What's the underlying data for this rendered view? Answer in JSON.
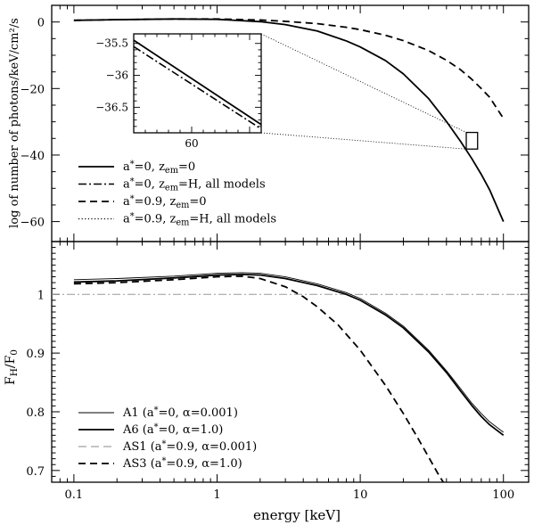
{
  "chart_data": [
    {
      "type": "line",
      "panel": "top",
      "ylabel": "log of number of photons/keV/cm²/s",
      "xlim": [
        0.07,
        150
      ],
      "ylim": [
        -66,
        5
      ],
      "x_scale": "log",
      "y_ticks": [
        {
          "v": 0,
          "label": "0"
        },
        {
          "v": -20,
          "label": "−20"
        },
        {
          "v": -40,
          "label": "−40"
        },
        {
          "v": -60,
          "label": "−60"
        }
      ],
      "legend_position": "lower-left",
      "legend": [
        {
          "style": "solid",
          "parts": [
            [
              "a",
              "a"
            ],
            [
              "sup",
              "*"
            ],
            [
              "a",
              "=0, z"
            ],
            [
              "sub",
              "em"
            ],
            [
              "a",
              "=0"
            ]
          ]
        },
        {
          "style": "dashdot",
          "parts": [
            [
              "a",
              "a"
            ],
            [
              "sup",
              "*"
            ],
            [
              "a",
              "=0, z"
            ],
            [
              "sub",
              "em"
            ],
            [
              "a",
              "=H, all models"
            ]
          ]
        },
        {
          "style": "dashed",
          "parts": [
            [
              "a",
              "a"
            ],
            [
              "sup",
              "*"
            ],
            [
              "a",
              "=0.9, z"
            ],
            [
              "sub",
              "em"
            ],
            [
              "a",
              "=0"
            ]
          ]
        },
        {
          "style": "dotted",
          "parts": [
            [
              "a",
              "a"
            ],
            [
              "sup",
              "*"
            ],
            [
              "a",
              "=0.9, z"
            ],
            [
              "sub",
              "em"
            ],
            [
              "a",
              "=H, all models"
            ]
          ]
        }
      ],
      "series": [
        {
          "style": "solid",
          "x": [
            0.1,
            0.2,
            0.5,
            1,
            2,
            3,
            5,
            8,
            10,
            15,
            20,
            30,
            40,
            50,
            60,
            70,
            80,
            100
          ],
          "y": [
            0.5,
            0.7,
            0.9,
            0.8,
            0.1,
            -0.8,
            -2.7,
            -5.7,
            -7.5,
            -11.6,
            -15.6,
            -23.0,
            -29.9,
            -35.8,
            -41.0,
            -45.8,
            -50.4,
            -60.0
          ]
        },
        {
          "style": "dashed",
          "x": [
            0.1,
            0.2,
            0.5,
            1,
            2,
            3,
            5,
            8,
            10,
            15,
            20,
            30,
            40,
            50,
            60,
            70,
            80,
            100
          ],
          "y": [
            0.5,
            0.7,
            0.9,
            0.9,
            0.6,
            0.2,
            -0.5,
            -1.6,
            -2.3,
            -4.0,
            -5.6,
            -8.6,
            -11.5,
            -14.3,
            -17.2,
            -20.0,
            -22.6,
            -29.0
          ]
        }
      ],
      "inset": {
        "x_ticks": [
          {
            "v": 60,
            "label": "60"
          }
        ],
        "y_ticks": [
          {
            "v": -35.5,
            "label": "−35.5"
          },
          {
            "v": -36,
            "label": "−36"
          },
          {
            "v": -36.5,
            "label": "−36.5"
          }
        ],
        "xlim": [
          55,
          66
        ],
        "ylim": [
          -36.9,
          -35.35
        ],
        "series": [
          {
            "style": "solid",
            "x": [
              55,
              66
            ],
            "y": [
              -35.45,
              -36.77
            ]
          },
          {
            "style": "dashdot",
            "x": [
              55,
              66
            ],
            "y": [
              -35.55,
              -36.84
            ]
          }
        ]
      }
    },
    {
      "type": "line",
      "panel": "bottom",
      "ylabel_parts": [
        [
          "a",
          "F"
        ],
        [
          "sub",
          "H"
        ],
        [
          "a",
          "/F"
        ],
        [
          "sub",
          "0"
        ]
      ],
      "xlabel": "energy [keV]",
      "xlim": [
        0.07,
        150
      ],
      "ylim": [
        0.68,
        1.09
      ],
      "x_scale": "log",
      "x_ticks": [
        {
          "v": 0.1,
          "label": "0.1"
        },
        {
          "v": 1,
          "label": "1"
        },
        {
          "v": 10,
          "label": "10"
        },
        {
          "v": 100,
          "label": "100"
        }
      ],
      "y_ticks": [
        {
          "v": 0.7,
          "label": "0.7"
        },
        {
          "v": 0.8,
          "label": "0.8"
        },
        {
          "v": 0.9,
          "label": "0.9"
        },
        {
          "v": 1.0,
          "label": "1"
        }
      ],
      "reference_line": 1.0,
      "legend_position": "lower-left",
      "legend": [
        {
          "style": "thin",
          "parts": [
            [
              "a",
              "A1 (a"
            ],
            [
              "sup",
              "*"
            ],
            [
              "a",
              "=0, α=0.001)"
            ]
          ]
        },
        {
          "style": "solid",
          "parts": [
            [
              "a",
              "A6 (a"
            ],
            [
              "sup",
              "*"
            ],
            [
              "a",
              "=0, α=1.0)"
            ]
          ]
        },
        {
          "style": "thindash",
          "parts": [
            [
              "a",
              "AS1 (a"
            ],
            [
              "sup",
              "*"
            ],
            [
              "a",
              "=0.9, α=0.001)"
            ]
          ]
        },
        {
          "style": "dashed",
          "parts": [
            [
              "a",
              "AS3 (a"
            ],
            [
              "sup",
              "*"
            ],
            [
              "a",
              "=0.9, α=1.0)"
            ]
          ]
        }
      ],
      "series": [
        {
          "name": "A1",
          "style": "thin",
          "x": [
            0.1,
            0.2,
            0.5,
            1,
            1.5,
            2,
            3,
            5,
            8,
            10,
            15,
            20,
            30,
            40,
            50,
            60,
            70,
            80,
            100
          ],
          "y": [
            1.025,
            1.027,
            1.031,
            1.036,
            1.037,
            1.036,
            1.03,
            1.018,
            1.003,
            0.993,
            0.968,
            0.946,
            0.905,
            0.87,
            0.84,
            0.815,
            0.797,
            0.783,
            0.765
          ]
        },
        {
          "name": "A6",
          "style": "solid",
          "x": [
            0.1,
            0.2,
            0.5,
            1,
            1.5,
            2,
            3,
            5,
            8,
            10,
            15,
            20,
            30,
            40,
            50,
            60,
            70,
            80,
            100
          ],
          "y": [
            1.021,
            1.023,
            1.028,
            1.033,
            1.034,
            1.033,
            1.027,
            1.015,
            1.0,
            0.99,
            0.965,
            0.943,
            0.902,
            0.867,
            0.836,
            0.811,
            0.792,
            0.778,
            0.76
          ]
        },
        {
          "name": "AS3",
          "style": "dashed",
          "x": [
            0.1,
            0.2,
            0.5,
            1,
            1.5,
            2,
            3,
            4,
            5,
            7,
            10,
            15,
            20,
            25,
            30,
            35,
            38
          ],
          "y": [
            1.018,
            1.02,
            1.025,
            1.03,
            1.031,
            1.027,
            1.013,
            0.996,
            0.979,
            0.948,
            0.905,
            0.845,
            0.797,
            0.757,
            0.723,
            0.694,
            0.68
          ]
        }
      ]
    }
  ]
}
